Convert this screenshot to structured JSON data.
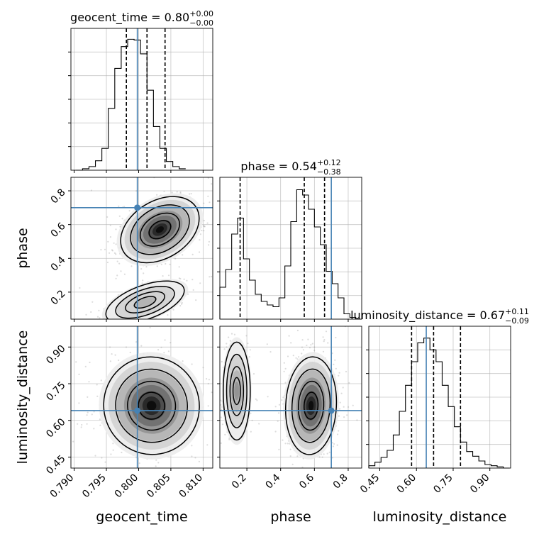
{
  "chart_data": {
    "type": "corner",
    "truth_color": "#4682b4",
    "params": [
      {
        "name": "geocent_time",
        "xlabel": "geocent_time",
        "range": [
          0.7895,
          0.8115
        ],
        "title": {
          "prefix": "geocent_time = ",
          "median": "0.80",
          "upper": "+0.00",
          "lower": "−0.00"
        },
        "ticks": [
          0.79,
          0.795,
          0.8,
          0.805,
          0.81
        ],
        "tick_labels": [
          "0.790",
          "0.795",
          "0.800",
          "0.805",
          "0.810"
        ],
        "quantiles": [
          0.7981,
          0.8013,
          0.8041
        ],
        "truth": 0.7998,
        "hist_edges_start": 0.7903,
        "hist_bin_width": 0.001,
        "hist": [
          0,
          2,
          5,
          13,
          30,
          85,
          140,
          170,
          180,
          179,
          160,
          110,
          60,
          30,
          12,
          5,
          2
        ],
        "hist_ylim": [
          0,
          195
        ]
      },
      {
        "name": "phase",
        "xlabel": "phase",
        "ylabel": "phase",
        "range": [
          0.04,
          0.88
        ],
        "title": {
          "prefix": "phase = ",
          "median": "0.54",
          "upper": "+0.12",
          "lower": "−0.38"
        },
        "ticks": [
          0.2,
          0.4,
          0.6,
          0.8
        ],
        "tick_labels": [
          "0.2",
          "0.4",
          "0.6",
          "0.8"
        ],
        "quantiles": [
          0.16,
          0.54,
          0.66
        ],
        "truth": 0.7,
        "hist_edges_start": 0.04,
        "hist_bin_width": 0.035,
        "hist": [
          18,
          28,
          48,
          57,
          34,
          22,
          14,
          10,
          8,
          7,
          12,
          30,
          55,
          73,
          70,
          62,
          52,
          42,
          27,
          20,
          12,
          3,
          1,
          0
        ],
        "hist_ylim": [
          0,
          80
        ]
      },
      {
        "name": "luminosity_distance",
        "xlabel": "luminosity_distance",
        "ylabel": "luminosity_distance",
        "range": [
          0.405,
          0.985
        ],
        "title": {
          "prefix": "luminosity_distance = ",
          "median": "0.67",
          "upper": "+0.11",
          "lower": "−0.09"
        },
        "ticks": [
          0.45,
          0.6,
          0.75,
          0.9
        ],
        "tick_labels": [
          "0.45",
          "0.60",
          "0.75",
          "0.90"
        ],
        "quantiles": [
          0.58,
          0.67,
          0.78
        ],
        "truth": 0.64,
        "hist_edges_start": 0.405,
        "hist_bin_width": 0.025,
        "hist": [
          2,
          5,
          9,
          15,
          28,
          48,
          70,
          90,
          106,
          110,
          100,
          90,
          70,
          52,
          35,
          22,
          14,
          10,
          6,
          3,
          2,
          1,
          0
        ],
        "hist_ylim": [
          0,
          120
        ]
      }
    ],
    "pairs": [
      {
        "x": 0,
        "y": 1,
        "modes": [
          {
            "cx": 0.8033,
            "cy": 0.57,
            "sx": 0.0033,
            "sy": 0.085,
            "rot": -0.55,
            "w": 1.0
          },
          {
            "cx": 0.801,
            "cy": 0.14,
            "sx": 0.0032,
            "sy": 0.05,
            "rot": -0.35,
            "w": 0.35
          }
        ]
      },
      {
        "x": 0,
        "y": 2,
        "modes": [
          {
            "cx": 0.802,
            "cy": 0.66,
            "sx": 0.0037,
            "sy": 0.1,
            "rot": -0.35,
            "w": 1.0
          }
        ]
      },
      {
        "x": 1,
        "y": 2,
        "modes": [
          {
            "cx": 0.58,
            "cy": 0.66,
            "sx": 0.075,
            "sy": 0.1,
            "rot": 0.05,
            "w": 1.0
          },
          {
            "cx": 0.14,
            "cy": 0.72,
            "sx": 0.04,
            "sy": 0.1,
            "rot": 0.0,
            "w": 0.45
          }
        ]
      }
    ]
  }
}
